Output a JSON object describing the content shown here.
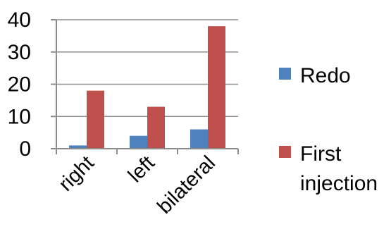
{
  "chart_data": {
    "type": "bar",
    "categories": [
      "right",
      "left",
      "bilateral"
    ],
    "series": [
      {
        "name": "Redo",
        "values": [
          1,
          4,
          6
        ],
        "color": "#4f81bd"
      },
      {
        "name": "First injection",
        "legend_lines": [
          "First",
          "injection"
        ],
        "values": [
          18,
          13,
          38
        ],
        "color": "#c0504d"
      }
    ],
    "ylim": [
      0,
      40
    ],
    "yticks": [
      0,
      10,
      20,
      30,
      40
    ],
    "grid": true,
    "legend": "right"
  }
}
